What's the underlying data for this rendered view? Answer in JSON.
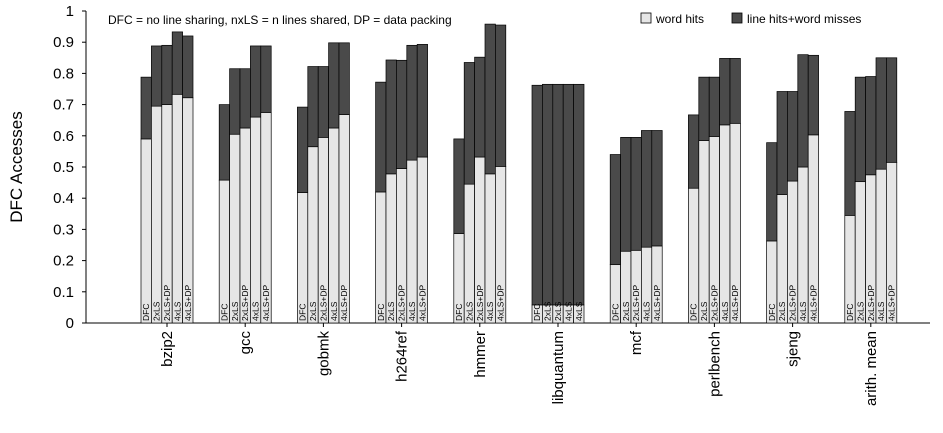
{
  "chart_data": {
    "type": "bar",
    "stacked": true,
    "ylabel": "DFC Accesses",
    "ylim": [
      0,
      1
    ],
    "yticks": [
      "0",
      "0.1",
      "0.2",
      "0.3",
      "0.4",
      "0.5",
      "0.6",
      "0.7",
      "0.8",
      "0.9",
      "1"
    ],
    "annotation": "DFC = no line sharing, nxLS = n lines shared, DP = data packing",
    "legend": {
      "placement": "top-right"
    },
    "series": [
      {
        "name": "word hits",
        "color": "#e6e6e6"
      },
      {
        "name": "line hits+word misses",
        "color": "#4a4a4a"
      }
    ],
    "groups": [
      {
        "name": "bzip2",
        "bars": [
          {
            "label": "DFC",
            "word_hits": 0.59,
            "total": 0.788
          },
          {
            "label": "2xLS",
            "word_hits": 0.695,
            "total": 0.888
          },
          {
            "label": "2xLS+DP",
            "word_hits": 0.7,
            "total": 0.89
          },
          {
            "label": "4xLS",
            "word_hits": 0.733,
            "total": 0.933
          },
          {
            "label": "4xLS+DP",
            "word_hits": 0.722,
            "total": 0.92
          }
        ]
      },
      {
        "name": "gcc",
        "bars": [
          {
            "label": "DFC",
            "word_hits": 0.458,
            "total": 0.7
          },
          {
            "label": "2xLS",
            "word_hits": 0.605,
            "total": 0.815
          },
          {
            "label": "2xLS+DP",
            "word_hits": 0.625,
            "total": 0.815
          },
          {
            "label": "4xLS",
            "word_hits": 0.66,
            "total": 0.888
          },
          {
            "label": "4xLS+DP",
            "word_hits": 0.675,
            "total": 0.888
          }
        ]
      },
      {
        "name": "gobmk",
        "bars": [
          {
            "label": "DFC",
            "word_hits": 0.418,
            "total": 0.692
          },
          {
            "label": "2xLS",
            "word_hits": 0.565,
            "total": 0.822
          },
          {
            "label": "2xLS+DP",
            "word_hits": 0.595,
            "total": 0.822
          },
          {
            "label": "4xLS",
            "word_hits": 0.625,
            "total": 0.898
          },
          {
            "label": "4xLS+DP",
            "word_hits": 0.668,
            "total": 0.898
          }
        ]
      },
      {
        "name": "h264ref",
        "bars": [
          {
            "label": "DFC",
            "word_hits": 0.42,
            "total": 0.772
          },
          {
            "label": "2xLS",
            "word_hits": 0.478,
            "total": 0.843
          },
          {
            "label": "2xLS+DP",
            "word_hits": 0.495,
            "total": 0.842
          },
          {
            "label": "4xLS",
            "word_hits": 0.522,
            "total": 0.89
          },
          {
            "label": "4xLS+DP",
            "word_hits": 0.532,
            "total": 0.893
          }
        ]
      },
      {
        "name": "hmmer",
        "bars": [
          {
            "label": "DFC",
            "word_hits": 0.287,
            "total": 0.59
          },
          {
            "label": "2xLS",
            "word_hits": 0.445,
            "total": 0.835
          },
          {
            "label": "2xLS+DP",
            "word_hits": 0.532,
            "total": 0.852
          },
          {
            "label": "4xLS",
            "word_hits": 0.478,
            "total": 0.958
          },
          {
            "label": "4xLS+DP",
            "word_hits": 0.502,
            "total": 0.955
          }
        ]
      },
      {
        "name": "libquantum",
        "bars": [
          {
            "label": "DFC",
            "word_hits": 0.058,
            "total": 0.762
          },
          {
            "label": "2xLS",
            "word_hits": 0.058,
            "total": 0.765
          },
          {
            "label": "2xLS",
            "word_hits": 0.058,
            "total": 0.765
          },
          {
            "label": "4xLS",
            "word_hits": 0.058,
            "total": 0.765
          },
          {
            "label": "4xLS",
            "word_hits": 0.058,
            "total": 0.765
          }
        ]
      },
      {
        "name": "mcf",
        "bars": [
          {
            "label": "DFC",
            "word_hits": 0.187,
            "total": 0.54
          },
          {
            "label": "2xLS",
            "word_hits": 0.23,
            "total": 0.595
          },
          {
            "label": "2xLS+DP",
            "word_hits": 0.233,
            "total": 0.595
          },
          {
            "label": "4xLS",
            "word_hits": 0.243,
            "total": 0.617
          },
          {
            "label": "4xLS+DP",
            "word_hits": 0.247,
            "total": 0.617
          }
        ]
      },
      {
        "name": "perlbench",
        "bars": [
          {
            "label": "DFC",
            "word_hits": 0.432,
            "total": 0.667
          },
          {
            "label": "2xLS",
            "word_hits": 0.585,
            "total": 0.788
          },
          {
            "label": "2xLS+DP",
            "word_hits": 0.598,
            "total": 0.788
          },
          {
            "label": "4xLS",
            "word_hits": 0.635,
            "total": 0.848
          },
          {
            "label": "4xLS+DP",
            "word_hits": 0.64,
            "total": 0.848
          }
        ]
      },
      {
        "name": "sjeng",
        "bars": [
          {
            "label": "DFC",
            "word_hits": 0.263,
            "total": 0.578
          },
          {
            "label": "2xLS",
            "word_hits": 0.412,
            "total": 0.742
          },
          {
            "label": "2xLS+DP",
            "word_hits": 0.455,
            "total": 0.742
          },
          {
            "label": "4xLS",
            "word_hits": 0.5,
            "total": 0.86
          },
          {
            "label": "4xLS+DP",
            "word_hits": 0.603,
            "total": 0.858
          }
        ]
      },
      {
        "name": "arith. mean",
        "bars": [
          {
            "label": "DFC",
            "word_hits": 0.345,
            "total": 0.678
          },
          {
            "label": "2xLS",
            "word_hits": 0.453,
            "total": 0.788
          },
          {
            "label": "2xLS+DP",
            "word_hits": 0.475,
            "total": 0.79
          },
          {
            "label": "4xLS",
            "word_hits": 0.493,
            "total": 0.85
          },
          {
            "label": "4xLS+DP",
            "word_hits": 0.515,
            "total": 0.85
          }
        ]
      }
    ]
  }
}
